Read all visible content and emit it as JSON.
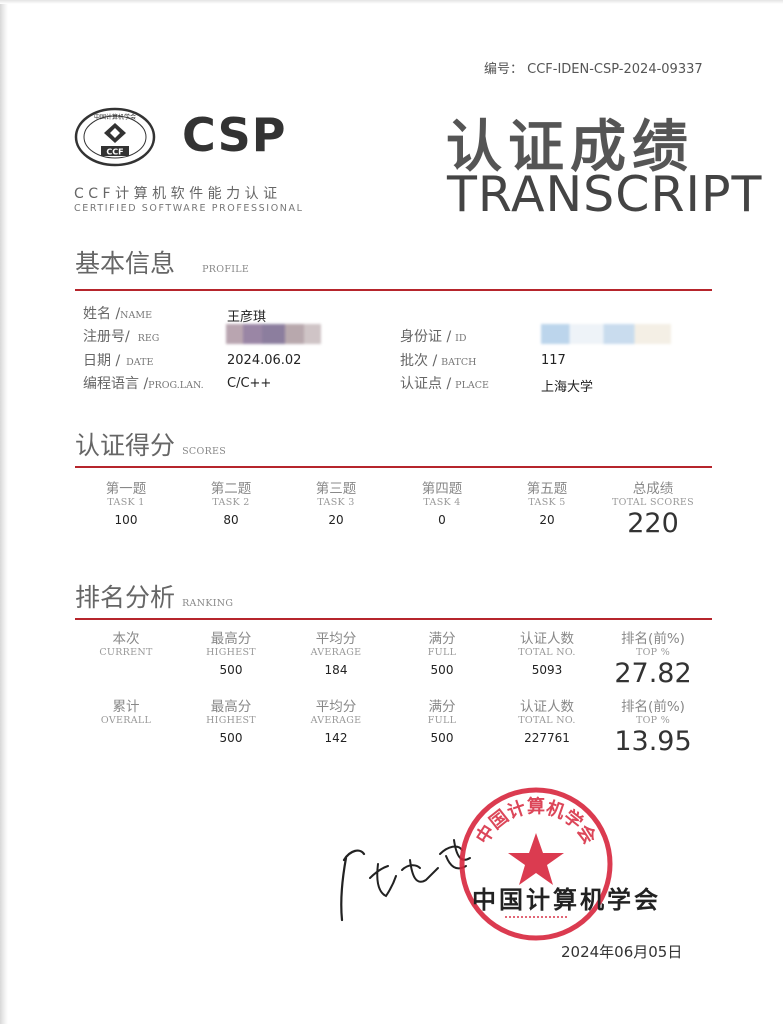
{
  "header": {
    "serial": "编号： CCF-IDEN-CSP-2024-09337",
    "logo_ccf_name": "CCF",
    "logo_ccf_ring_text": "中国计算机学会",
    "logo_csp": "CSP",
    "subtitle_cn": "CCF计算机软件能力认证",
    "subtitle_en": "CERTIFIED SOFTWARE PROFESSIONAL",
    "title_cn": "认证成绩",
    "title_en": "TRANSCRIPT"
  },
  "profile": {
    "heading_cn": "基本信息",
    "heading_en": "PROFILE",
    "name_label": "姓名 /",
    "name_label_en": "NAME",
    "name_value": "王彦琪",
    "reg_label": "注册号/",
    "reg_label_en": "REG",
    "id_label": "身份证 /",
    "id_label_en": "ID",
    "date_label": "日期 /",
    "date_label_en": "DATE",
    "date_value": "2024.06.02",
    "batch_label": "批次 /",
    "batch_label_en": "BATCH",
    "batch_value": "117",
    "lang_label": "编程语言 /",
    "lang_label_en": "PROG.LAN.",
    "lang_value": "C/C++",
    "place_label": "认证点 /",
    "place_label_en": "PLACE",
    "place_value": "上海大学"
  },
  "scores": {
    "heading_cn": "认证得分",
    "heading_en": "SCORES",
    "tasks": [
      {
        "cn": "第一题",
        "en": "TASK 1",
        "score": "100"
      },
      {
        "cn": "第二题",
        "en": "TASK 2",
        "score": "80"
      },
      {
        "cn": "第三题",
        "en": "TASK 3",
        "score": "20"
      },
      {
        "cn": "第四题",
        "en": "TASK 4",
        "score": "0"
      },
      {
        "cn": "第五题",
        "en": "TASK 5",
        "score": "20"
      }
    ],
    "total": {
      "cn": "总成绩",
      "en": "TOTAL SCORES",
      "score": "220"
    }
  },
  "ranking": {
    "heading_cn": "排名分析",
    "heading_en": "RANKING",
    "rows": [
      {
        "label_cn": "本次",
        "label_en": "CURRENT",
        "highest": "500",
        "average": "184",
        "full": "500",
        "total_no": "5093",
        "top": "27.82"
      },
      {
        "label_cn": "累计",
        "label_en": "OVERALL",
        "highest": "500",
        "average": "142",
        "full": "500",
        "total_no": "227761",
        "top": "13.95"
      }
    ],
    "col_highest_cn": "最高分",
    "col_highest_en": "HIGHEST",
    "col_average_cn": "平均分",
    "col_average_en": "AVERAGE",
    "col_full_cn": "满分",
    "col_full_en": "FULL",
    "col_total_cn": "认证人数",
    "col_total_en": "TOTAL NO.",
    "col_top_cn": "排名(前%)",
    "col_top_en": "TOP %"
  },
  "footer": {
    "org": "中国计算机学会",
    "stamp_text": "中国计算机学会",
    "date": "2024年06月05日"
  },
  "colors": {
    "accent_red": "#b6252c",
    "stamp_red": "#d7263d"
  }
}
